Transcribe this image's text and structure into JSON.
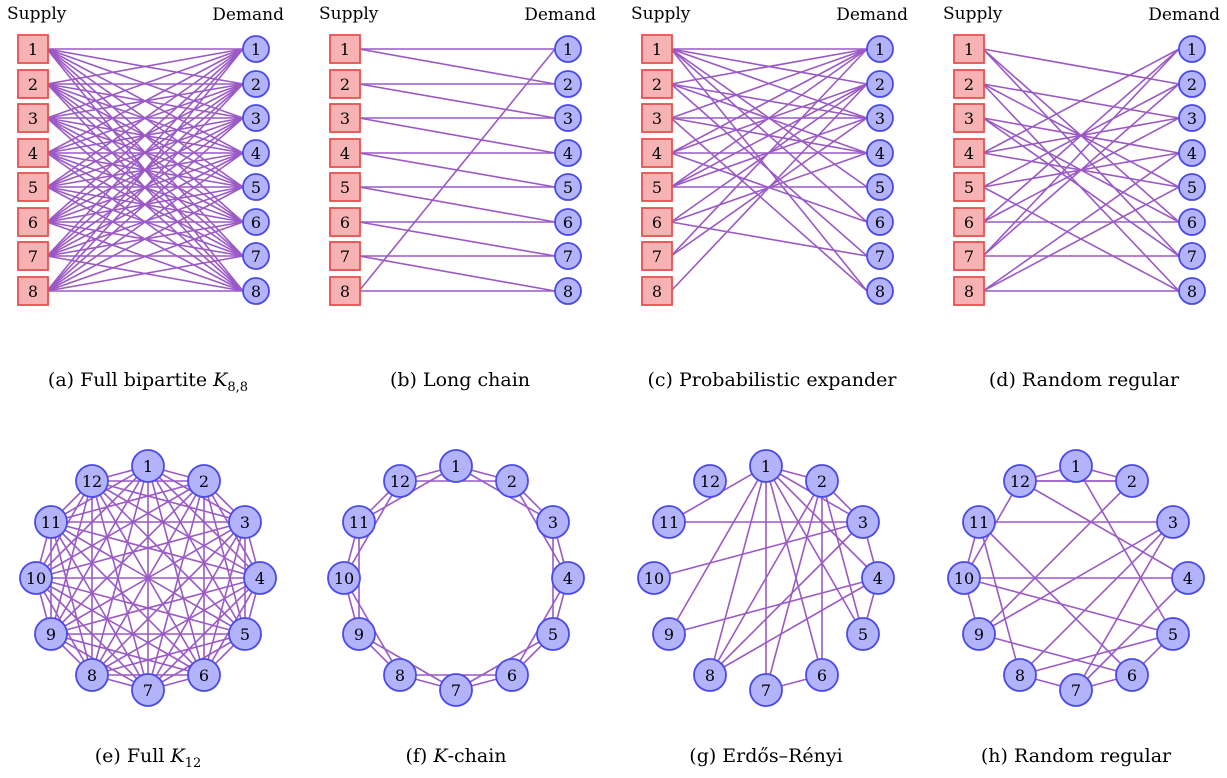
{
  "bipartite_panels": [
    {
      "supply_label": "Supply",
      "demand_label": "Demand",
      "caption": {
        "prefix": "(a) Full bipartite ",
        "math": "K",
        "sub": "8,8",
        "suffix": ""
      },
      "nodes": [
        "1",
        "2",
        "3",
        "4",
        "5",
        "6",
        "7",
        "8"
      ],
      "full": true,
      "edges": []
    },
    {
      "supply_label": "Supply",
      "demand_label": "Demand",
      "caption": {
        "prefix": "(b) Long chain",
        "math": "",
        "sub": "",
        "suffix": ""
      },
      "nodes": [
        "1",
        "2",
        "3",
        "4",
        "5",
        "6",
        "7",
        "8"
      ],
      "full": false,
      "edges": [
        [
          1,
          1
        ],
        [
          1,
          2
        ],
        [
          2,
          2
        ],
        [
          2,
          3
        ],
        [
          3,
          3
        ],
        [
          3,
          4
        ],
        [
          4,
          4
        ],
        [
          4,
          5
        ],
        [
          5,
          5
        ],
        [
          5,
          6
        ],
        [
          6,
          6
        ],
        [
          6,
          7
        ],
        [
          7,
          7
        ],
        [
          7,
          8
        ],
        [
          8,
          8
        ],
        [
          8,
          1
        ]
      ]
    },
    {
      "supply_label": "Supply",
      "demand_label": "Demand",
      "caption": {
        "prefix": "(c) Probabilistic expander",
        "math": "",
        "sub": "",
        "suffix": ""
      },
      "nodes": [
        "1",
        "2",
        "3",
        "4",
        "5",
        "6",
        "7",
        "8"
      ],
      "full": false,
      "edges": [
        [
          1,
          1
        ],
        [
          1,
          2
        ],
        [
          1,
          3
        ],
        [
          1,
          5
        ],
        [
          1,
          6
        ],
        [
          1,
          8
        ],
        [
          2,
          1
        ],
        [
          2,
          3
        ],
        [
          2,
          4
        ],
        [
          2,
          7
        ],
        [
          3,
          1
        ],
        [
          3,
          3
        ],
        [
          3,
          4
        ],
        [
          3,
          8
        ],
        [
          4,
          1
        ],
        [
          4,
          2
        ],
        [
          4,
          4
        ],
        [
          4,
          6
        ],
        [
          5,
          1
        ],
        [
          5,
          2
        ],
        [
          5,
          3
        ],
        [
          5,
          5
        ],
        [
          6,
          2
        ],
        [
          6,
          4
        ],
        [
          6,
          7
        ],
        [
          7,
          1
        ],
        [
          7,
          3
        ],
        [
          8,
          2
        ]
      ]
    },
    {
      "supply_label": "Supply",
      "demand_label": "Demand",
      "caption": {
        "prefix": "(d) Random regular",
        "math": "",
        "sub": "",
        "suffix": ""
      },
      "nodes": [
        "1",
        "2",
        "3",
        "4",
        "5",
        "6",
        "7",
        "8"
      ],
      "full": false,
      "edges": [
        [
          1,
          2
        ],
        [
          1,
          6
        ],
        [
          1,
          7
        ],
        [
          2,
          3
        ],
        [
          2,
          5
        ],
        [
          2,
          8
        ],
        [
          3,
          4
        ],
        [
          3,
          6
        ],
        [
          3,
          7
        ],
        [
          4,
          1
        ],
        [
          4,
          3
        ],
        [
          4,
          5
        ],
        [
          5,
          2
        ],
        [
          5,
          4
        ],
        [
          5,
          8
        ],
        [
          6,
          1
        ],
        [
          6,
          3
        ],
        [
          6,
          6
        ],
        [
          7,
          1
        ],
        [
          7,
          2
        ],
        [
          7,
          7
        ],
        [
          8,
          4
        ],
        [
          8,
          5
        ],
        [
          8,
          8
        ]
      ]
    }
  ],
  "circular_panels": [
    {
      "caption": {
        "prefix": "(e) Full ",
        "math": "K",
        "sub": "12",
        "suffix": ""
      },
      "nodes": [
        "1",
        "2",
        "3",
        "4",
        "5",
        "6",
        "7",
        "8",
        "9",
        "10",
        "11",
        "12"
      ],
      "full": true,
      "edges": []
    },
    {
      "caption": {
        "prefix": "(f) ",
        "math": "K",
        "sub": "",
        "suffix": "-chain"
      },
      "nodes": [
        "1",
        "2",
        "3",
        "4",
        "5",
        "6",
        "7",
        "8",
        "9",
        "10",
        "11",
        "12"
      ],
      "full": false,
      "edges": [
        [
          1,
          2
        ],
        [
          2,
          3
        ],
        [
          3,
          4
        ],
        [
          4,
          5
        ],
        [
          5,
          6
        ],
        [
          6,
          7
        ],
        [
          7,
          8
        ],
        [
          8,
          9
        ],
        [
          9,
          10
        ],
        [
          10,
          11
        ],
        [
          11,
          12
        ],
        [
          12,
          1
        ],
        [
          1,
          3
        ],
        [
          2,
          4
        ],
        [
          3,
          5
        ],
        [
          4,
          6
        ],
        [
          5,
          7
        ],
        [
          6,
          8
        ],
        [
          7,
          9
        ],
        [
          8,
          10
        ],
        [
          9,
          11
        ],
        [
          10,
          12
        ],
        [
          11,
          1
        ],
        [
          12,
          2
        ]
      ]
    },
    {
      "caption": {
        "prefix": "(g) Erdős–Rényi",
        "math": "",
        "sub": "",
        "suffix": ""
      },
      "nodes": [
        "1",
        "2",
        "3",
        "4",
        "5",
        "6",
        "7",
        "8",
        "9",
        "10",
        "11",
        "12"
      ],
      "full": false,
      "edges": [
        [
          1,
          2
        ],
        [
          1,
          3
        ],
        [
          1,
          4
        ],
        [
          1,
          5
        ],
        [
          1,
          6
        ],
        [
          1,
          7
        ],
        [
          1,
          8
        ],
        [
          1,
          9
        ],
        [
          1,
          11
        ],
        [
          2,
          3
        ],
        [
          2,
          5
        ],
        [
          2,
          6
        ],
        [
          2,
          7
        ],
        [
          2,
          8
        ],
        [
          3,
          10
        ],
        [
          3,
          11
        ],
        [
          3,
          4
        ],
        [
          4,
          5
        ],
        [
          4,
          8
        ],
        [
          4,
          9
        ],
        [
          6,
          7
        ],
        [
          3,
          8
        ]
      ]
    },
    {
      "caption": {
        "prefix": "(h) Random regular",
        "math": "",
        "sub": "",
        "suffix": ""
      },
      "nodes": [
        "1",
        "2",
        "3",
        "4",
        "5",
        "6",
        "7",
        "8",
        "9",
        "10",
        "11",
        "12"
      ],
      "full": false,
      "edges": [
        [
          12,
          1
        ],
        [
          12,
          2
        ],
        [
          1,
          2
        ],
        [
          1,
          5
        ],
        [
          11,
          3
        ],
        [
          11,
          6
        ],
        [
          11,
          8
        ],
        [
          10,
          4
        ],
        [
          10,
          5
        ],
        [
          10,
          9
        ],
        [
          9,
          3
        ],
        [
          9,
          6
        ],
        [
          2,
          9
        ],
        [
          3,
          8
        ],
        [
          4,
          7
        ],
        [
          5,
          6
        ],
        [
          6,
          7
        ],
        [
          7,
          8
        ],
        [
          12,
          10
        ],
        [
          4,
          12
        ],
        [
          5,
          8
        ],
        [
          3,
          7
        ],
        [
          10,
          11
        ],
        [
          2,
          12
        ]
      ]
    }
  ]
}
